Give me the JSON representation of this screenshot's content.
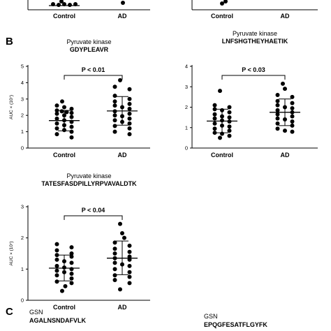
{
  "panels": {
    "b": "B",
    "c": "C"
  },
  "section_c": {
    "left": {
      "protein": "GSN",
      "peptide": "AGALNSNDAFVLK"
    },
    "right": {
      "protein": "GSN",
      "peptide": "EPQGFESATFLGYFK"
    }
  },
  "top_partial": {
    "categories": [
      "Control",
      "AD"
    ]
  },
  "chart_data": [
    {
      "type": "scatter",
      "title": "Pyruvate kinase",
      "subtitle": "GDYPLEAVR",
      "ylabel": "AUC × (10⁷)",
      "ylim": [
        0,
        5
      ],
      "yticks": [
        0,
        1,
        2,
        3,
        4,
        5
      ],
      "categories": [
        "Control",
        "AD"
      ],
      "annotation": "P < 0.01",
      "series": [
        {
          "points": [
            2.85,
            2.6,
            2.5,
            2.4,
            2.3,
            2.25,
            2.2,
            2.15,
            2.1,
            2.0,
            1.9,
            1.8,
            1.7,
            1.6,
            1.5,
            1.4,
            1.3,
            1.2,
            1.1,
            1.0,
            0.85,
            0.65
          ],
          "mean": 1.68,
          "sd": [
            1.05,
            2.3
          ]
        },
        {
          "points": [
            4.15,
            3.75,
            3.6,
            3.2,
            3.0,
            2.85,
            2.7,
            2.6,
            2.5,
            2.4,
            2.25,
            2.1,
            2.0,
            1.95,
            1.8,
            1.7,
            1.6,
            1.5,
            1.35,
            1.2,
            1.0,
            0.85
          ],
          "mean": 2.27,
          "sd": [
            1.4,
            3.15
          ]
        }
      ]
    },
    {
      "type": "scatter",
      "title": "Pyruvate kinase",
      "subtitle": "LNFSHGTHEYHAETIK",
      "ylabel": "",
      "ylim": [
        0,
        4
      ],
      "yticks": [
        0,
        1,
        2,
        3,
        4
      ],
      "categories": [
        "Control",
        "AD"
      ],
      "annotation": "P < 0.03",
      "series": [
        {
          "points": [
            2.8,
            2.1,
            2.0,
            1.9,
            1.85,
            1.75,
            1.65,
            1.55,
            1.5,
            1.45,
            1.35,
            1.3,
            1.2,
            1.1,
            1.05,
            0.95,
            0.85,
            0.75,
            0.7,
            0.6,
            0.5
          ],
          "mean": 1.32,
          "sd": [
            0.75,
            1.9
          ]
        },
        {
          "points": [
            3.15,
            2.9,
            2.6,
            2.5,
            2.3,
            2.2,
            2.1,
            2.0,
            1.95,
            1.85,
            1.75,
            1.65,
            1.55,
            1.45,
            1.4,
            1.3,
            1.2,
            1.1,
            0.95,
            0.85,
            0.8
          ],
          "mean": 1.75,
          "sd": [
            1.1,
            2.4
          ]
        }
      ]
    },
    {
      "type": "scatter",
      "title": "Pyruvate kinase",
      "subtitle": "TATESFASDPILLYRPVAVALDTK",
      "ylabel": "AUC × (10⁷)",
      "ylim": [
        0,
        3
      ],
      "yticks": [
        0,
        1,
        2,
        3
      ],
      "categories": [
        "Control",
        "AD"
      ],
      "annotation": "P < 0.04",
      "series": [
        {
          "points": [
            1.8,
            1.7,
            1.6,
            1.5,
            1.45,
            1.4,
            1.3,
            1.25,
            1.2,
            1.1,
            1.05,
            1.0,
            0.95,
            0.9,
            0.85,
            0.8,
            0.7,
            0.6,
            0.55,
            0.45,
            0.3
          ],
          "mean": 1.03,
          "sd": [
            0.62,
            1.45
          ]
        },
        {
          "points": [
            2.45,
            2.15,
            2.0,
            1.85,
            1.75,
            1.65,
            1.55,
            1.5,
            1.4,
            1.35,
            1.3,
            1.2,
            1.15,
            1.1,
            1.0,
            0.9,
            0.8,
            0.75,
            0.65,
            0.55,
            0.35
          ],
          "mean": 1.35,
          "sd": [
            0.82,
            1.9
          ]
        }
      ]
    }
  ]
}
